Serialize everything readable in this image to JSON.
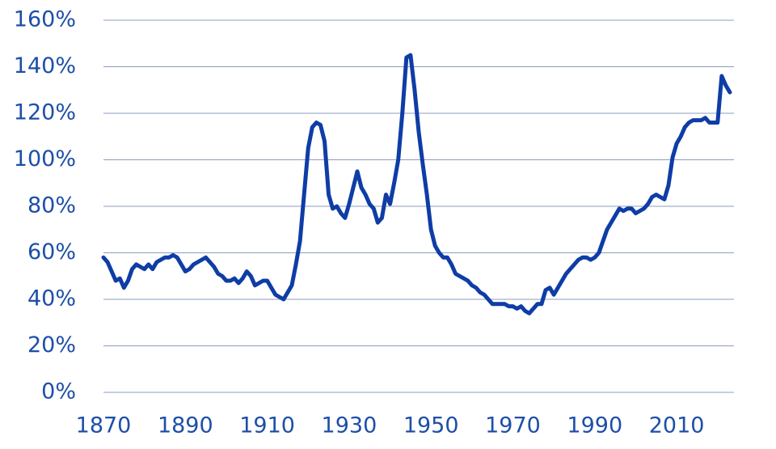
{
  "chart_data": {
    "type": "line",
    "color": "#0f3da6",
    "text_color": "#1d4fa8",
    "grid": true,
    "grid_color": "#8d9cc0",
    "xlim": [
      1870,
      2024
    ],
    "xticks": [
      1870,
      1890,
      1910,
      1930,
      1950,
      1970,
      1990,
      2010
    ],
    "ylim": [
      0,
      160
    ],
    "yticks": [
      {
        "value": 0,
        "label": "0%"
      },
      {
        "value": 20,
        "label": "20%"
      },
      {
        "value": 40,
        "label": "40%"
      },
      {
        "value": 60,
        "label": "60%"
      },
      {
        "value": 80,
        "label": "80%"
      },
      {
        "value": 100,
        "label": "100%"
      },
      {
        "value": 120,
        "label": "120%"
      },
      {
        "value": 140,
        "label": "140%"
      },
      {
        "value": 160,
        "label": "160%"
      }
    ],
    "x": [
      1870,
      1871,
      1872,
      1873,
      1874,
      1875,
      1876,
      1877,
      1878,
      1879,
      1880,
      1881,
      1882,
      1883,
      1884,
      1885,
      1886,
      1887,
      1888,
      1889,
      1890,
      1891,
      1892,
      1893,
      1894,
      1895,
      1896,
      1897,
      1898,
      1899,
      1900,
      1901,
      1902,
      1903,
      1904,
      1905,
      1906,
      1907,
      1908,
      1909,
      1910,
      1911,
      1912,
      1913,
      1914,
      1915,
      1916,
      1917,
      1918,
      1919,
      1920,
      1921,
      1922,
      1923,
      1924,
      1925,
      1926,
      1927,
      1928,
      1929,
      1930,
      1931,
      1932,
      1933,
      1934,
      1935,
      1936,
      1937,
      1938,
      1939,
      1940,
      1941,
      1942,
      1943,
      1944,
      1945,
      1946,
      1947,
      1948,
      1949,
      1950,
      1951,
      1952,
      1953,
      1954,
      1955,
      1956,
      1957,
      1958,
      1959,
      1960,
      1961,
      1962,
      1963,
      1964,
      1965,
      1966,
      1967,
      1968,
      1969,
      1970,
      1971,
      1972,
      1973,
      1974,
      1975,
      1976,
      1977,
      1978,
      1979,
      1980,
      1981,
      1982,
      1983,
      1984,
      1985,
      1986,
      1987,
      1988,
      1989,
      1990,
      1991,
      1992,
      1993,
      1994,
      1995,
      1996,
      1997,
      1998,
      1999,
      2000,
      2001,
      2002,
      2003,
      2004,
      2005,
      2006,
      2007,
      2008,
      2009,
      2010,
      2011,
      2012,
      2013,
      2014,
      2015,
      2016,
      2017,
      2018,
      2019,
      2020,
      2021,
      2022,
      2023
    ],
    "values": [
      58,
      56,
      52,
      48,
      49,
      45,
      48,
      53,
      55,
      54,
      53,
      55,
      53,
      56,
      57,
      58,
      58,
      59,
      58,
      55,
      52,
      53,
      55,
      56,
      57,
      58,
      56,
      54,
      51,
      50,
      48,
      48,
      49,
      47,
      49,
      52,
      50,
      46,
      47,
      48,
      48,
      45,
      42,
      41,
      40,
      43,
      46,
      55,
      65,
      85,
      105,
      114,
      116,
      115,
      108,
      85,
      79,
      80,
      77,
      75,
      81,
      88,
      95,
      88,
      85,
      81,
      79,
      73,
      75,
      85,
      81,
      90,
      100,
      120,
      144,
      145,
      130,
      112,
      98,
      85,
      70,
      63,
      60,
      58,
      58,
      55,
      51,
      50,
      49,
      48,
      46,
      45,
      43,
      42,
      40,
      38,
      38,
      38,
      38,
      37,
      37,
      36,
      37,
      35,
      34,
      36,
      38,
      38,
      44,
      45,
      42,
      45,
      48,
      51,
      53,
      55,
      57,
      58,
      58,
      57,
      58,
      60,
      65,
      70,
      73,
      76,
      79,
      78,
      79,
      79,
      77,
      78,
      79,
      81,
      84,
      85,
      84,
      83,
      89,
      101,
      107,
      110,
      114,
      116,
      117,
      117,
      117,
      118,
      116,
      116,
      116,
      136,
      132,
      129
    ]
  }
}
